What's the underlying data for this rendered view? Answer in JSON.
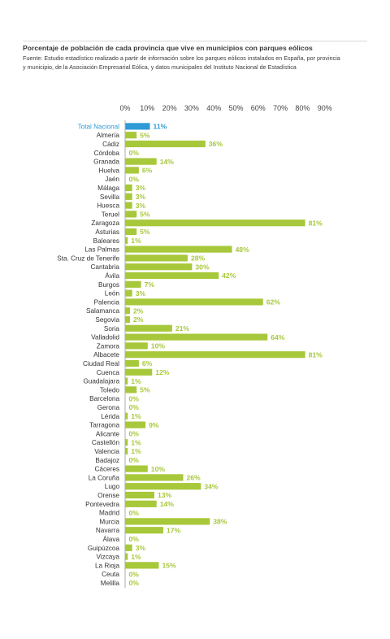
{
  "header": {
    "title": "Porcentaje de población de cada provincia que vive en municipios con parques eólicos",
    "source_line1": "Fuente: Estudio estadístico realizado a partir de información sobre los parques eólicos instalados en España, por provincia",
    "source_line2": "y municipio, de la Asociación Empresarial Eólica, y datos municipales del Instituto Nacional de Estadística"
  },
  "chart_data": {
    "type": "bar",
    "orientation": "horizontal",
    "title": "Porcentaje de población de cada provincia que vive en municipios con parques eólicos",
    "xlim": [
      0,
      90
    ],
    "tick_labels": [
      "0%",
      "10%",
      "20%",
      "30%",
      "40%",
      "50%",
      "60%",
      "70%",
      "80%",
      "90%"
    ],
    "ticks": [
      0,
      10,
      20,
      30,
      40,
      50,
      60,
      70,
      80,
      90
    ],
    "grid": false,
    "legend": "none",
    "colors": {
      "highlight": "#2e9bd6",
      "bar": "#a7c83a",
      "label": "#333333",
      "highlight_label": "#2e9bd6"
    },
    "categories": [
      "Total Nacional",
      "Almería",
      "Cádiz",
      "Córdoba",
      "Granada",
      "Huelva",
      "Jaén",
      "Málaga",
      "Sevilla",
      "Huesca",
      "Teruel",
      "Zaragoza",
      "Asturias",
      "Baleares",
      "Las Palmas",
      "Sta. Cruz de Tenerife",
      "Cantabria",
      "Ávila",
      "Burgos",
      "León",
      "Palencia",
      "Salamanca",
      "Segovia",
      "Soria",
      "Valladolid",
      "Zamora",
      "Albacete",
      "Ciudad Real",
      "Cuenca",
      "Guadalajara",
      "Toledo",
      "Barcelona",
      "Gerona",
      "Lérida",
      "Tarragona",
      "Alicante",
      "Castellón",
      "Valencia",
      "Badajoz",
      "Cáceres",
      "La Coruña",
      "Lugo",
      "Orense",
      "Pontevedra",
      "Madrid",
      "Murcia",
      "Navarra",
      "Álava",
      "Guipúzcoa",
      "Vizcaya",
      "La Rioja",
      "Ceuta",
      "Melilla"
    ],
    "values": [
      11,
      5,
      36,
      0,
      14,
      6,
      0,
      3,
      3,
      3,
      5,
      81,
      5,
      1,
      48,
      28,
      30,
      42,
      7,
      3,
      62,
      2,
      2,
      21,
      64,
      10,
      81,
      6,
      12,
      1,
      5,
      0,
      0,
      1,
      9,
      0,
      1,
      1,
      0,
      10,
      26,
      34,
      13,
      14,
      0,
      38,
      17,
      0,
      3,
      1,
      15,
      0,
      0
    ],
    "value_labels": [
      "11%",
      "5%",
      "36%",
      "0%",
      "14%",
      "6%",
      "0%",
      "3%",
      "3%",
      "3%",
      "5%",
      "81%",
      "5%",
      "1%",
      "48%",
      "28%",
      "30%",
      "42%",
      "7%",
      "3%",
      "62%",
      "2%",
      "2%",
      "21%",
      "64%",
      "10%",
      "81%",
      "6%",
      "12%",
      "1%",
      "5%",
      "0%",
      "0%",
      "1%",
      "9%",
      "0%",
      "1%",
      "1%",
      "0%",
      "10%",
      "26%",
      "34%",
      "13%",
      "14%",
      "0%",
      "38%",
      "17%",
      "0%",
      "3%",
      "1%",
      "15%",
      "0%",
      "0%"
    ],
    "highlight_index": 0
  }
}
